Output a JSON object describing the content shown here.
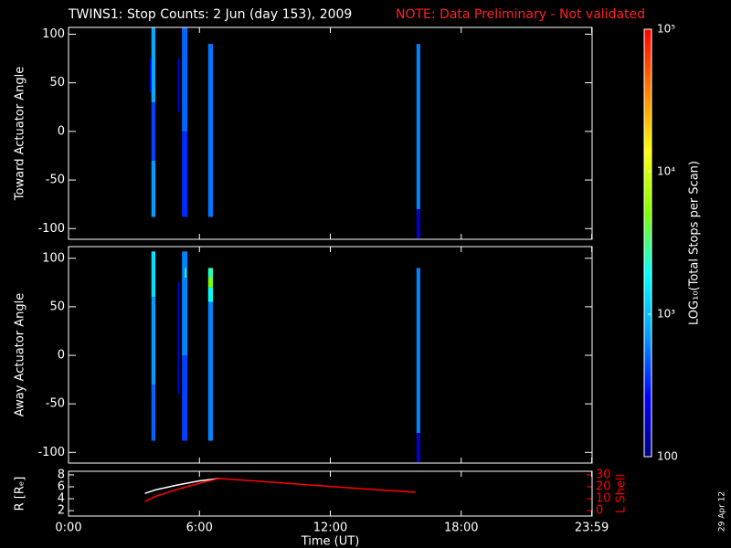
{
  "title": "TWINS1: Stop Counts:  2 Jun (day 153), 2009",
  "note": "NOTE: Data Preliminary - Not validated",
  "date_stamp": "29 Apr 12",
  "chart_data": [
    {
      "type": "heatmap",
      "ylabel": "Toward Actuator Angle",
      "ylim": [
        -111,
        107
      ],
      "yticks": [
        -100,
        -50,
        0,
        50,
        100
      ],
      "cells": [
        {
          "x": [
            3.8,
            3.98
          ],
          "y": [
            -88,
            -30
          ],
          "value": 700
        },
        {
          "x": [
            3.8,
            3.98
          ],
          "y": [
            -30,
            30
          ],
          "value": 400
        },
        {
          "x": [
            3.8,
            3.98
          ],
          "y": [
            30,
            107
          ],
          "value": 800
        },
        {
          "x": [
            3.72,
            3.78
          ],
          "y": [
            40,
            75
          ],
          "value": 250
        },
        {
          "x": [
            5.2,
            5.45
          ],
          "y": [
            -88,
            0
          ],
          "value": 350
        },
        {
          "x": [
            5.2,
            5.45
          ],
          "y": [
            0,
            107
          ],
          "value": 500
        },
        {
          "x": [
            5.02,
            5.07
          ],
          "y": [
            20,
            75
          ],
          "value": 250
        },
        {
          "x": [
            6.4,
            6.62
          ],
          "y": [
            -88,
            90
          ],
          "value": 550
        },
        {
          "x": [
            15.95,
            16.12
          ],
          "y": [
            -110,
            -80
          ],
          "value": 180
        },
        {
          "x": [
            15.95,
            16.12
          ],
          "y": [
            -80,
            90
          ],
          "value": 600
        }
      ]
    },
    {
      "type": "heatmap",
      "ylabel": "Away Actuator Angle",
      "ylim": [
        -111,
        112
      ],
      "yticks": [
        -100,
        -50,
        0,
        50,
        100
      ],
      "cells": [
        {
          "x": [
            3.8,
            3.98
          ],
          "y": [
            -88,
            -30
          ],
          "value": 500
        },
        {
          "x": [
            3.8,
            3.98
          ],
          "y": [
            -30,
            60
          ],
          "value": 700
        },
        {
          "x": [
            3.8,
            3.98
          ],
          "y": [
            60,
            107
          ],
          "value": 1400
        },
        {
          "x": [
            5.2,
            5.45
          ],
          "y": [
            -88,
            0
          ],
          "value": 400
        },
        {
          "x": [
            5.2,
            5.45
          ],
          "y": [
            0,
            107
          ],
          "value": 600
        },
        {
          "x": [
            5.33,
            5.4
          ],
          "y": [
            80,
            90
          ],
          "value": 3000
        },
        {
          "x": [
            5.02,
            5.07
          ],
          "y": [
            -40,
            75
          ],
          "value": 250
        },
        {
          "x": [
            6.4,
            6.62
          ],
          "y": [
            -88,
            55
          ],
          "value": 600
        },
        {
          "x": [
            6.4,
            6.62
          ],
          "y": [
            55,
            70
          ],
          "value": 2000
        },
        {
          "x": [
            6.4,
            6.62
          ],
          "y": [
            70,
            80
          ],
          "value": 5000
        },
        {
          "x": [
            6.4,
            6.62
          ],
          "y": [
            80,
            90
          ],
          "value": 2500
        },
        {
          "x": [
            15.95,
            16.12
          ],
          "y": [
            -110,
            -80
          ],
          "value": 180
        },
        {
          "x": [
            15.95,
            16.12
          ],
          "y": [
            -80,
            90
          ],
          "value": 600
        }
      ]
    },
    {
      "type": "line",
      "ylabel": "R [Rₑ]",
      "y2label": "L Shell",
      "xlabel": "Time (UT)",
      "xlim": [
        0,
        24
      ],
      "xticks": [
        {
          "value": 0,
          "label": "0:00"
        },
        {
          "value": 6,
          "label": "6:00"
        },
        {
          "value": 12,
          "label": "12:00"
        },
        {
          "value": 18,
          "label": "18:00"
        },
        {
          "value": 23.983,
          "label": "23:59"
        }
      ],
      "ylim": [
        1.1,
        8.6
      ],
      "yticks": [
        2,
        4,
        6,
        8
      ],
      "y2lim": [
        -4.6,
        33.1
      ],
      "y2ticks": [
        0,
        10,
        20,
        30
      ],
      "y2color": "#ff0000",
      "series": [
        {
          "color": "#ffffff",
          "x": [
            3.5,
            4,
            5,
            6,
            6.9
          ],
          "values": [
            4.9,
            5.5,
            6.3,
            7.0,
            7.4
          ]
        },
        {
          "color": "#ff0000",
          "axis": "y2",
          "x": [
            3.5,
            4,
            5,
            6,
            6.9,
            10,
            13,
            15.9
          ],
          "values": [
            7.7,
            12,
            18,
            23,
            27,
            23,
            19,
            15.4
          ]
        }
      ]
    },
    {
      "type": "colorbar",
      "label": "LOG₁₀(Total Stops per Scan)",
      "zlim": [
        100,
        100000
      ],
      "log": true,
      "ticks": [
        {
          "value": 100,
          "label": "100"
        },
        {
          "value": 1000,
          "label": "10³"
        },
        {
          "value": 10000,
          "label": "10⁴"
        },
        {
          "value": 100000,
          "label": "10⁵"
        }
      ],
      "colors": [
        "#000080",
        "#0000ff",
        "#00a0ff",
        "#00ffff",
        "#80ff00",
        "#ffff00",
        "#ff8000",
        "#ff0000"
      ]
    }
  ]
}
